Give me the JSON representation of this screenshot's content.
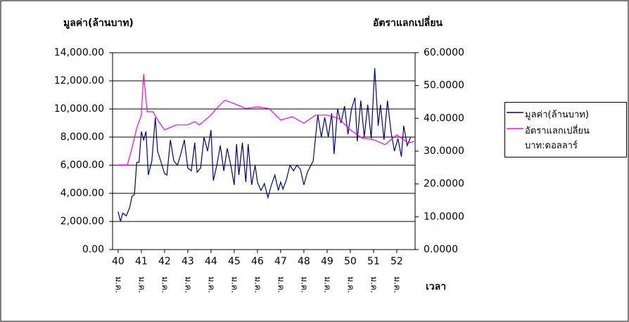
{
  "chart_data": {
    "type": "line",
    "y_title": "มูลค่า(ล้านบาท)",
    "y2_title": "อัตราแลกเปลี่ยน",
    "x_title": "เวลา",
    "xtick_sublabel": "ม.ค.",
    "xlim": [
      39.76,
      52.79
    ],
    "xticks": [
      40,
      41,
      42,
      43,
      44,
      45,
      46,
      47,
      48,
      49,
      50,
      51,
      52
    ],
    "ylim": [
      0,
      14000
    ],
    "yticks": [
      {
        "value": 0,
        "label": "0.00"
      },
      {
        "value": 2000,
        "label": "2,000.00"
      },
      {
        "value": 4000,
        "label": "4,000.00"
      },
      {
        "value": 6000,
        "label": "6,000.00"
      },
      {
        "value": 8000,
        "label": "8,000.00"
      },
      {
        "value": 10000,
        "label": "10,000.00"
      },
      {
        "value": 12000,
        "label": "12,000.00"
      },
      {
        "value": 14000,
        "label": "14,000.00"
      }
    ],
    "y2lim": [
      0,
      60
    ],
    "y2ticks": [
      {
        "value": 0,
        "label": "0.0000"
      },
      {
        "value": 10,
        "label": "10.0000"
      },
      {
        "value": 20,
        "label": "20.0000"
      },
      {
        "value": 30,
        "label": "30.0000"
      },
      {
        "value": 40,
        "label": "40.0000"
      },
      {
        "value": 50,
        "label": "50.0000"
      },
      {
        "value": 60,
        "label": "60.0000"
      }
    ],
    "grid": true,
    "legend": "right",
    "series": [
      {
        "name": "มูลค่า(ล้านบาท)",
        "color": "#000080",
        "x": [
          40,
          40.1,
          40.2,
          40.35,
          40.5,
          40.6,
          40.7,
          40.8,
          40.9,
          41,
          41.1,
          41.2,
          41.3,
          41.45,
          41.6,
          41.7,
          41.85,
          42,
          42.1,
          42.25,
          42.4,
          42.55,
          42.7,
          42.85,
          43,
          43.15,
          43.3,
          43.4,
          43.55,
          43.7,
          43.85,
          44,
          44.1,
          44.25,
          44.4,
          44.55,
          44.7,
          44.85,
          45,
          45.1,
          45.2,
          45.35,
          45.5,
          45.6,
          45.75,
          45.9,
          46,
          46.15,
          46.3,
          46.45,
          46.6,
          46.75,
          46.9,
          47,
          47.1,
          47.25,
          47.4,
          47.55,
          47.7,
          47.85,
          48,
          48.15,
          48.4,
          48.6,
          48.75,
          48.9,
          49.05,
          49.2,
          49.3,
          49.45,
          49.6,
          49.75,
          49.9,
          50.05,
          50.2,
          50.3,
          50.45,
          50.6,
          50.75,
          50.9,
          51.05,
          51.2,
          51.3,
          51.45,
          51.6,
          51.75,
          51.9,
          52.05,
          52.2,
          52.3,
          52.45,
          52.6
        ],
        "values": [
          2700,
          2000,
          2600,
          2400,
          3000,
          3800,
          3900,
          6200,
          6200,
          8400,
          7800,
          8400,
          5300,
          6300,
          9400,
          7000,
          6200,
          5400,
          5300,
          7800,
          6300,
          6000,
          6800,
          7800,
          5800,
          5600,
          7600,
          5500,
          5800,
          8000,
          7000,
          8500,
          4900,
          6000,
          7400,
          5600,
          7200,
          6000,
          4600,
          7500,
          5300,
          7600,
          4800,
          7500,
          4600,
          6000,
          4800,
          4200,
          4700,
          3700,
          4600,
          5300,
          4200,
          4800,
          4300,
          5000,
          6000,
          5600,
          6000,
          5700,
          4600,
          5500,
          6300,
          9600,
          8000,
          9400,
          8000,
          9700,
          6800,
          10000,
          9000,
          10200,
          8200,
          10000,
          10800,
          7700,
          10600,
          8000,
          10300,
          7900,
          12900,
          8800,
          10300,
          7800,
          10600,
          8400,
          7000,
          7900,
          6600,
          8800,
          7400,
          8000
        ]
      },
      {
        "name": "อัตราแลกเปลี่ยน บาท:ดอลลาร์",
        "color": "#ff00ff",
        "axis": "y2",
        "x": [
          40,
          40.4,
          40.6,
          40.8,
          41,
          41.1,
          41.25,
          41.5,
          41.75,
          42,
          42.5,
          43,
          43.3,
          43.5,
          44,
          44.3,
          44.6,
          45,
          45.5,
          46,
          46.5,
          47,
          47.5,
          48,
          48.5,
          49,
          49.5,
          50,
          50.5,
          51,
          51.5,
          52,
          52.5,
          52.75
        ],
        "values": [
          25.8,
          25.8,
          31,
          37,
          41,
          53.5,
          42,
          42,
          39,
          36.5,
          38,
          38,
          39,
          38,
          41,
          43.5,
          45.5,
          44.5,
          43,
          43.5,
          43,
          39.5,
          40.5,
          38.5,
          41,
          41,
          40,
          36.5,
          34,
          33.5,
          32,
          35,
          32.5,
          33
        ]
      }
    ]
  }
}
